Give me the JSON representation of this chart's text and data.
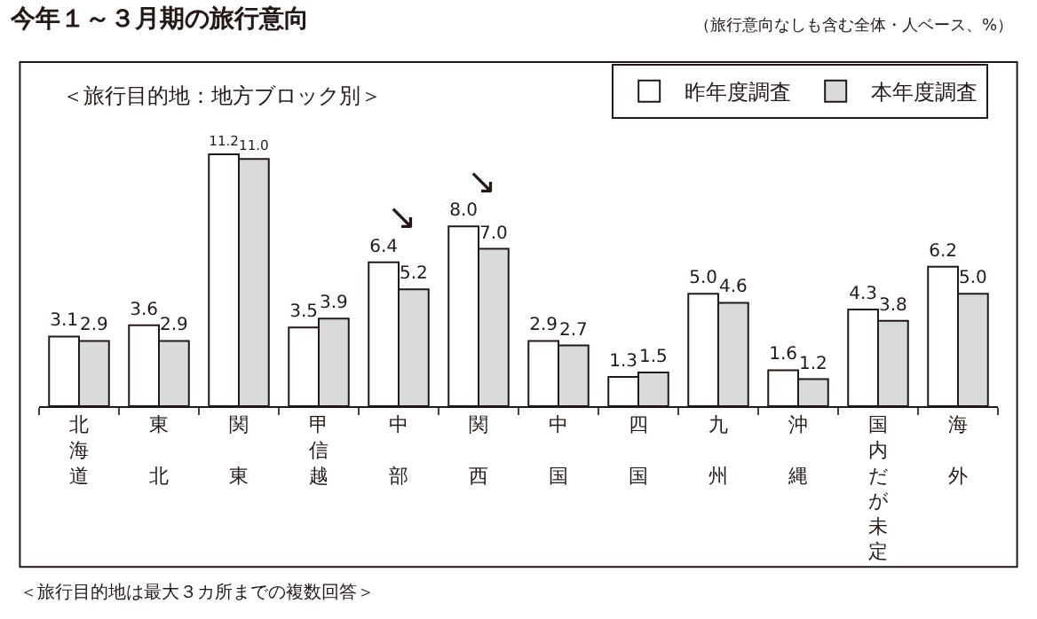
{
  "chart_data": {
    "type": "bar",
    "title": "今年１～３月期の旅行意向",
    "subtitle": "（旅行意向なしも含む全体・人ベース、%）",
    "categories": [
      "北海道",
      "東北",
      "関東",
      "甲信越",
      "中部",
      "関西",
      "中国",
      "四国",
      "九州",
      "沖縄",
      "国内だが未定",
      "海外"
    ],
    "series": [
      {
        "name": "昨年度調査",
        "color": "#ffffff",
        "values": [
          3.1,
          3.6,
          11.2,
          3.5,
          6.4,
          8.0,
          2.9,
          1.3,
          5.0,
          1.6,
          4.3,
          6.2
        ],
        "value_labels": [
          "3.1",
          "3.6",
          "11.2",
          "3.5",
          "6.4",
          "8.0",
          "2.9",
          "1.3",
          "5.0",
          "1.6",
          "4.3",
          "6.2"
        ]
      },
      {
        "name": "本年度調査",
        "color": "#d9dbdb",
        "values": [
          2.9,
          2.9,
          11.0,
          3.9,
          5.2,
          7.0,
          2.7,
          1.5,
          4.6,
          1.2,
          3.8,
          5.0
        ],
        "value_labels": [
          "2.9",
          "2.9",
          "11.0",
          "3.9",
          "5.2",
          "7.0",
          "2.7",
          "1.5",
          "4.6",
          "1.2",
          "3.8",
          "5.0"
        ]
      }
    ],
    "legend": "top right",
    "annotations": [
      "＜旅行目的地：地方ブロック別＞",
      "＜旅行目的地は最大３カ所までの複数回答＞",
      {
        "text": "↘",
        "x": "中部",
        "y": 6.4
      },
      {
        "text": "↘",
        "x": "関西",
        "y": 8.0
      }
    ]
  }
}
